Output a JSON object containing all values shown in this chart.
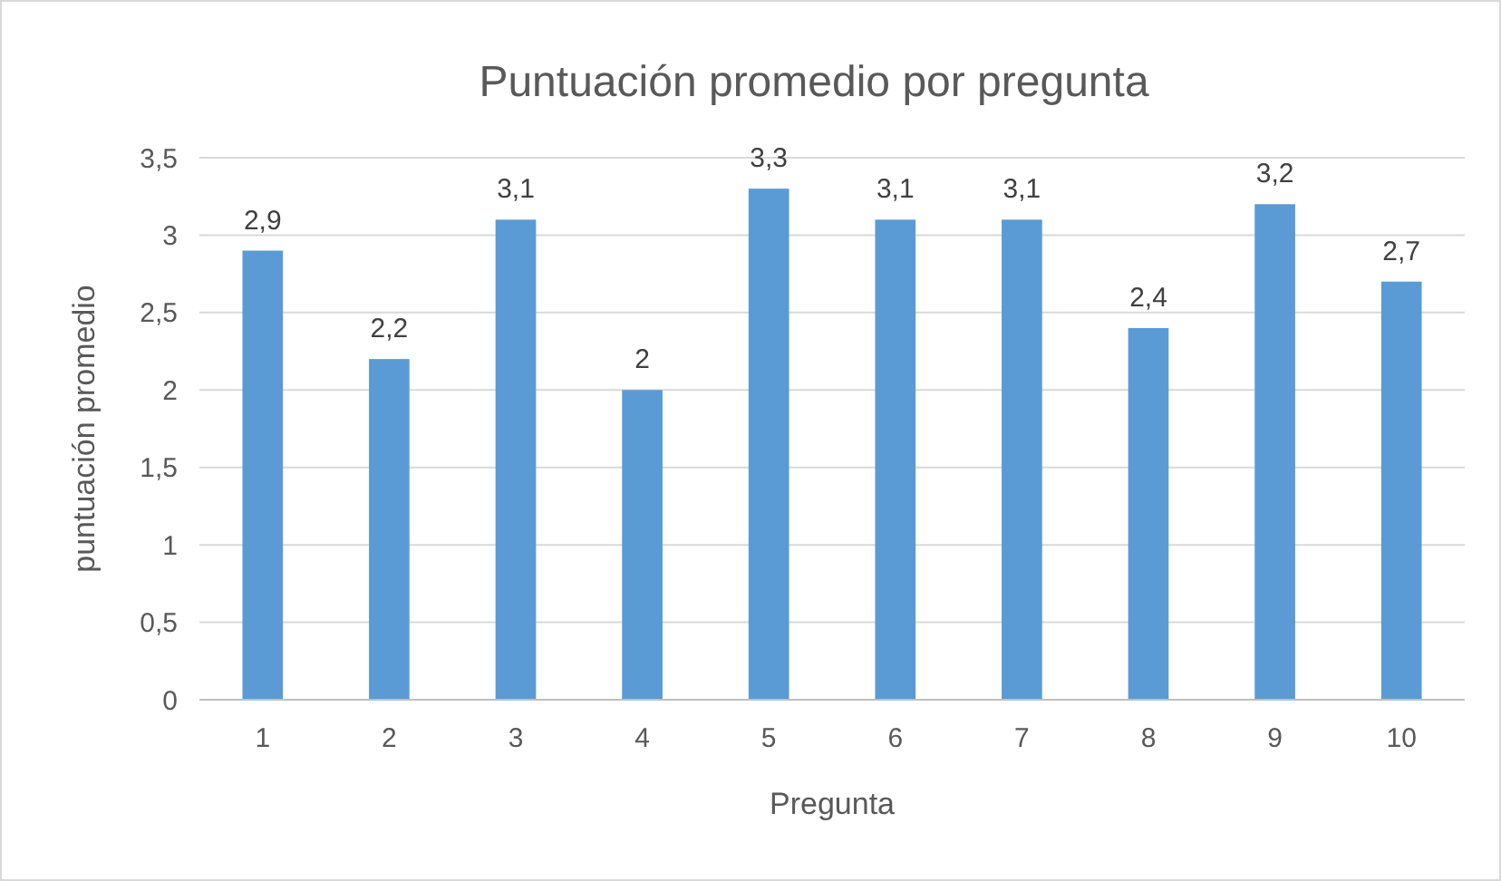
{
  "chart_data": {
    "type": "bar",
    "title": "Puntuación promedio por pregunta",
    "xlabel": "Pregunta",
    "ylabel": "puntuación promedio",
    "categories": [
      "1",
      "2",
      "3",
      "4",
      "5",
      "6",
      "7",
      "8",
      "9",
      "10"
    ],
    "values": [
      2.9,
      2.2,
      3.1,
      2,
      3.3,
      3.1,
      3.1,
      2.4,
      3.2,
      2.7
    ],
    "value_labels": [
      "2,9",
      "2,2",
      "3,1",
      "2",
      "3,3",
      "3,1",
      "3,1",
      "2,4",
      "3,2",
      "2,7"
    ],
    "color": "#5b9bd5",
    "ylim": [
      0,
      3.5
    ],
    "yticks": [
      0,
      {
        "value": 0.5,
        "label": "0,5"
      },
      1,
      {
        "value": 1.5,
        "label": "1,5"
      },
      2,
      {
        "value": 2.5,
        "label": "2,5"
      },
      3,
      {
        "value": 3.5,
        "label": "3,5"
      }
    ],
    "grid": "y"
  }
}
